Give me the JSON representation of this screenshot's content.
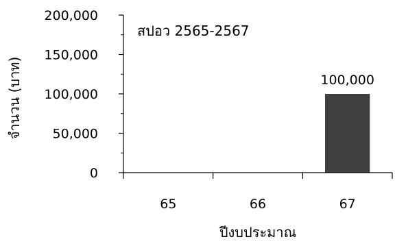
{
  "chart_data": {
    "type": "bar",
    "categories": [
      "65",
      "66",
      "67"
    ],
    "values": [
      0,
      0,
      100000
    ],
    "data_labels": [
      "",
      "",
      "100,000"
    ],
    "title": "",
    "annotation": "สปอว 2565-2567",
    "xlabel": "ปีงบประมาณ",
    "ylabel": "จำนวน (บาท)",
    "ylim": [
      0,
      200000
    ],
    "yticks": [
      0,
      50000,
      100000,
      150000,
      200000
    ],
    "ytick_labels": [
      "0",
      "50,000",
      "100,000",
      "150,000",
      "200,000"
    ],
    "grid": false,
    "legend": "none",
    "bar_color": "#404040"
  }
}
